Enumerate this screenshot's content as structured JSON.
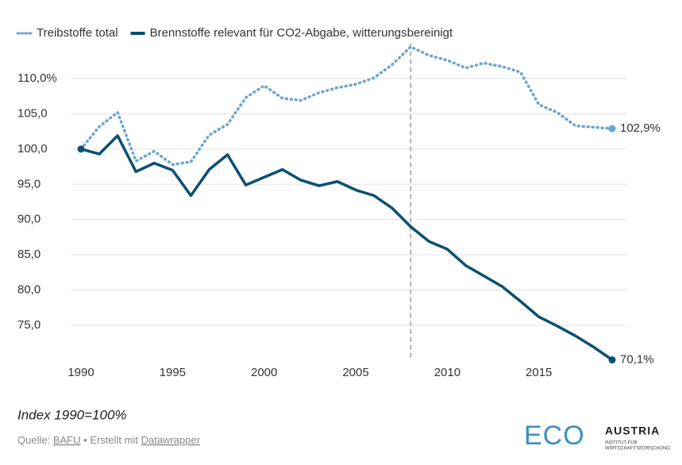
{
  "chart_data": {
    "type": "line",
    "legend": {
      "position": "top-left"
    },
    "x": [
      1990,
      1991,
      1992,
      1993,
      1994,
      1995,
      1996,
      1997,
      1998,
      1999,
      2000,
      2001,
      2002,
      2003,
      2004,
      2005,
      2006,
      2007,
      2008,
      2009,
      2010,
      2011,
      2012,
      2013,
      2014,
      2015,
      2016,
      2017,
      2018,
      2019
    ],
    "series": [
      {
        "name": "Treibstoffe total",
        "color": "#6aa5d3",
        "style": "dotted",
        "values": [
          100,
          103.2,
          105.2,
          98.3,
          99.7,
          97.8,
          98.2,
          102,
          103.5,
          107.3,
          109,
          107.2,
          106.9,
          108,
          108.7,
          109.2,
          110.1,
          112,
          114.5,
          113.3,
          112.6,
          111.5,
          112.2,
          111.7,
          110.9,
          106.3,
          105.2,
          103.3,
          103.1,
          102.9
        ],
        "value_labels": [
          null,
          null,
          null,
          null,
          null,
          null,
          null,
          null,
          null,
          null,
          null,
          null,
          null,
          null,
          null,
          null,
          null,
          null,
          null,
          null,
          null,
          null,
          null,
          null,
          null,
          null,
          null,
          null,
          null,
          "102,9%"
        ]
      },
      {
        "name": "Brennstoffe relevant für CO2-Abgabe, witterungsbereinigt",
        "color": "#0b4f72",
        "style": "solid",
        "values": [
          100,
          99.3,
          101.9,
          96.8,
          98,
          97,
          93.4,
          97.1,
          99.2,
          94.9,
          96,
          97.1,
          95.6,
          94.8,
          95.4,
          94.2,
          93.4,
          91.6,
          89,
          86.9,
          85.8,
          83.5,
          82,
          80.5,
          78.4,
          76.2,
          74.9,
          73.5,
          71.9,
          70.1
        ],
        "value_labels": [
          null,
          null,
          null,
          null,
          null,
          null,
          null,
          null,
          null,
          null,
          null,
          null,
          null,
          null,
          null,
          null,
          null,
          null,
          null,
          null,
          null,
          null,
          null,
          null,
          null,
          null,
          null,
          null,
          null,
          "70,1%"
        ]
      }
    ],
    "xlim": [
      1990,
      2019
    ],
    "xticks": [
      1990,
      1995,
      2000,
      2005,
      2010,
      2015
    ],
    "ylim": [
      70,
      115
    ],
    "yticks": [
      {
        "value": 75,
        "label": "75,0"
      },
      {
        "value": 80,
        "label": "80,0"
      },
      {
        "value": 85,
        "label": "85,0"
      },
      {
        "value": 90,
        "label": "90,0"
      },
      {
        "value": 95,
        "label": "95,0"
      },
      {
        "value": 100,
        "label": "100,0"
      },
      {
        "value": 105,
        "label": "105,0"
      },
      {
        "value": 110,
        "label": "110,0%"
      }
    ],
    "grid": true,
    "vline": {
      "x": 2008,
      "color": "#b0b0b0"
    },
    "note": "Index 1990=100%",
    "source": {
      "prefix": "Quelle:",
      "link1": "BAFU",
      "middle": "• Erstellt mit",
      "link2": "Datawrapper"
    },
    "logo": {
      "mark": "ECO",
      "name": "AUSTRIA",
      "line1": "INSTITUT FÜR",
      "line2": "WIRTSCHAFTSFORSCHUNG"
    }
  }
}
